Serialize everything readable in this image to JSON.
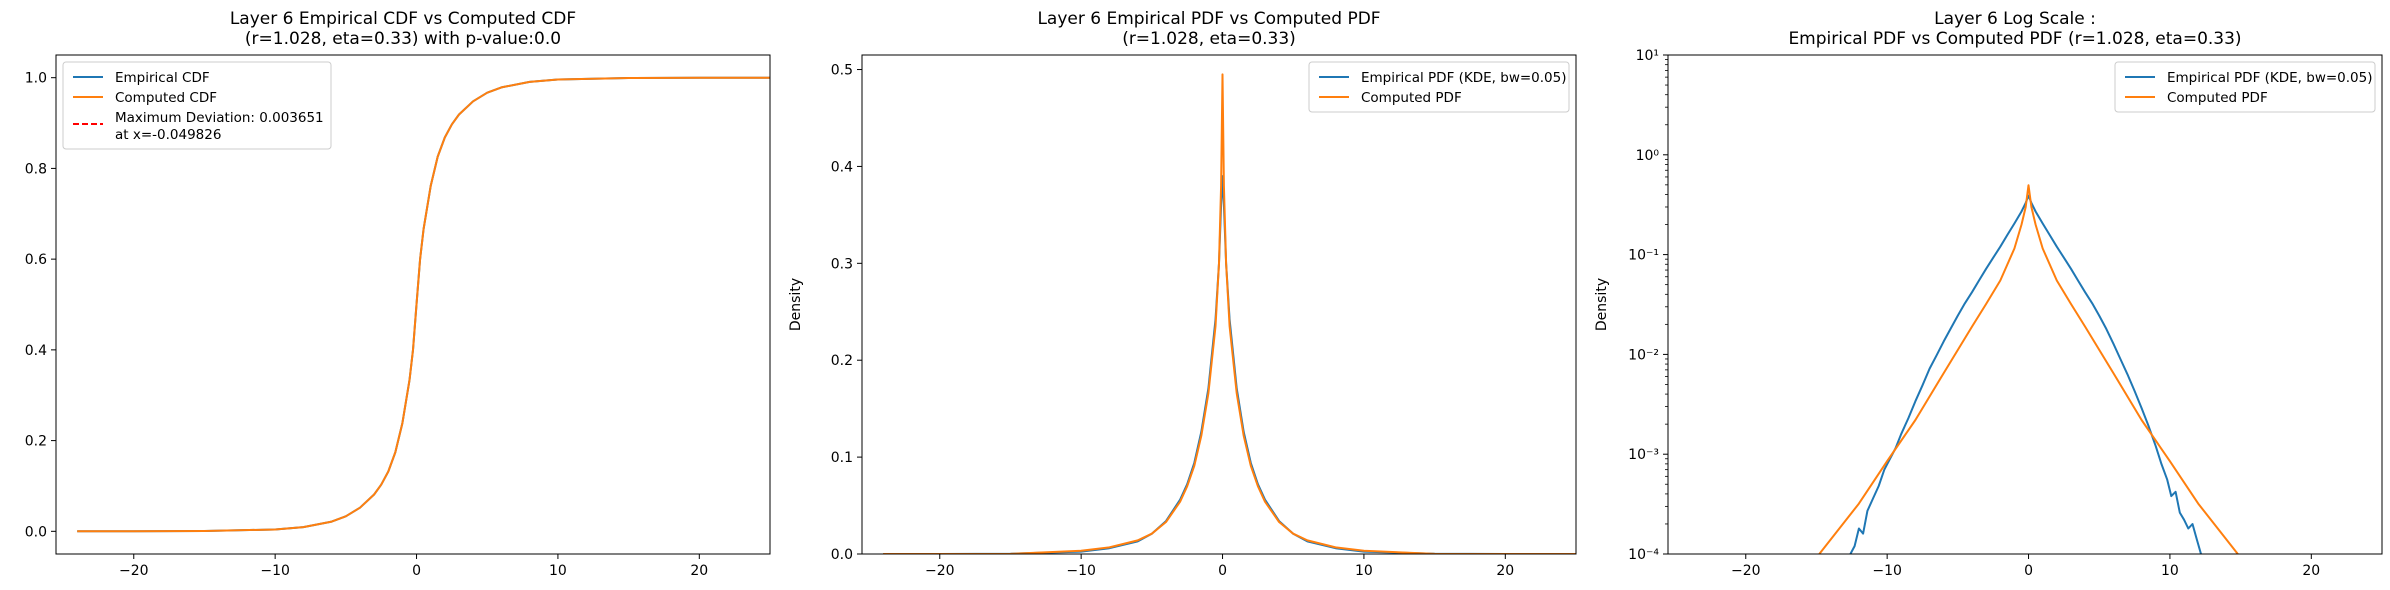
{
  "charts": [
    {
      "title_lines": [
        "Layer 6 Empirical CDF vs Computed CDF",
        "(r=1.028, eta=0.33) with p-value:0.0"
      ],
      "ylabel": "",
      "legend": [
        "Empirical CDF",
        "Computed CDF",
        "Maximum Deviation: 0.003651",
        "at x=-0.049826"
      ]
    },
    {
      "title_lines": [
        "Layer 6 Empirical PDF vs Computed PDF",
        "(r=1.028, eta=0.33)"
      ],
      "ylabel": "Density",
      "legend": [
        "Empirical PDF (KDE, bw=0.05)",
        "Computed PDF"
      ]
    },
    {
      "title_lines": [
        "Layer 6 Log Scale :",
        "Empirical PDF vs Computed PDF (r=1.028, eta=0.33)"
      ],
      "ylabel": "Density",
      "legend": [
        "Empirical PDF (KDE, bw=0.05)",
        "Computed PDF"
      ]
    }
  ],
  "chart_data": [
    {
      "type": "line",
      "xlim": [
        -25.5,
        25
      ],
      "ylim": [
        -0.05,
        1.05
      ],
      "xticks": [
        -20,
        -10,
        0,
        10,
        20
      ],
      "xtick_labels": [
        "−20",
        "−10",
        "0",
        "10",
        "20"
      ],
      "yticks": [
        0.0,
        0.2,
        0.4,
        0.6,
        0.8,
        1.0
      ],
      "ytick_labels": [
        "0.0",
        "0.2",
        "0.4",
        "0.6",
        "0.8",
        "1.0"
      ],
      "grid": false,
      "legend_position": "upper-left",
      "series": [
        {
          "name": "Empirical CDF",
          "color": "#1f77b4",
          "x": [
            -24,
            -20,
            -15,
            -10,
            -8,
            -6,
            -5,
            -4,
            -3,
            -2.5,
            -2,
            -1.5,
            -1,
            -0.5,
            -0.25,
            0,
            0.25,
            0.5,
            1,
            1.5,
            2,
            2.5,
            3,
            4,
            5,
            6,
            8,
            10,
            15,
            20,
            25
          ],
          "y": [
            0.0,
            0.0001,
            0.0006,
            0.0039,
            0.0093,
            0.0214,
            0.0332,
            0.0521,
            0.0812,
            0.1027,
            0.1318,
            0.1739,
            0.2385,
            0.3333,
            0.4,
            0.5,
            0.6,
            0.6667,
            0.7615,
            0.8261,
            0.8682,
            0.8973,
            0.9188,
            0.9479,
            0.9668,
            0.9786,
            0.9907,
            0.9961,
            0.9994,
            0.9999,
            1.0
          ]
        },
        {
          "name": "Computed CDF",
          "color": "#ff7f0e",
          "x": [
            -24,
            -20,
            -15,
            -10,
            -8,
            -6,
            -5,
            -4,
            -3,
            -2.5,
            -2,
            -1.5,
            -1,
            -0.5,
            -0.25,
            0,
            0.25,
            0.5,
            1,
            1.5,
            2,
            2.5,
            3,
            4,
            5,
            6,
            8,
            10,
            15,
            20,
            25
          ],
          "y": [
            0.0,
            0.0001,
            0.0006,
            0.0039,
            0.0093,
            0.0214,
            0.0332,
            0.0521,
            0.0812,
            0.1027,
            0.1318,
            0.1739,
            0.2385,
            0.3333,
            0.4,
            0.5,
            0.6,
            0.6667,
            0.7615,
            0.8261,
            0.8682,
            0.8973,
            0.9188,
            0.9479,
            0.9668,
            0.9786,
            0.9907,
            0.9961,
            0.9994,
            0.9999,
            1.0
          ]
        },
        {
          "name": "Maximum Deviation: 0.003651\nat x=-0.049826",
          "color": "#ff0000",
          "dashed": true,
          "x": [],
          "y": []
        }
      ]
    },
    {
      "type": "line",
      "xlim": [
        -25.5,
        25
      ],
      "ylim": [
        0,
        0.515
      ],
      "xticks": [
        -20,
        -10,
        0,
        10,
        20
      ],
      "xtick_labels": [
        "−20",
        "−10",
        "0",
        "10",
        "20"
      ],
      "yticks": [
        0.0,
        0.1,
        0.2,
        0.3,
        0.4,
        0.5
      ],
      "ytick_labels": [
        "0.0",
        "0.1",
        "0.2",
        "0.3",
        "0.4",
        "0.5"
      ],
      "grid": false,
      "legend_position": "upper-right",
      "series": [
        {
          "name": "Empirical PDF (KDE, bw=0.05)",
          "color": "#1f77b4",
          "x": [
            -24,
            -20,
            -15,
            -10,
            -8,
            -6,
            -5,
            -4,
            -3,
            -2.5,
            -2,
            -1.5,
            -1,
            -0.5,
            -0.25,
            -0.1,
            0,
            0.1,
            0.25,
            0.5,
            1,
            1.5,
            2,
            2.5,
            3,
            4,
            5,
            6,
            8,
            10,
            15,
            20,
            25
          ],
          "y": [
            0.0,
            0.0,
            0.0003,
            0.0025,
            0.006,
            0.013,
            0.021,
            0.034,
            0.056,
            0.072,
            0.094,
            0.126,
            0.171,
            0.242,
            0.3,
            0.36,
            0.39,
            0.36,
            0.3,
            0.242,
            0.171,
            0.126,
            0.094,
            0.072,
            0.056,
            0.034,
            0.021,
            0.013,
            0.006,
            0.0025,
            0.0003,
            0.0,
            0.0
          ]
        },
        {
          "name": "Computed PDF",
          "color": "#ff7f0e",
          "x": [
            -24,
            -20,
            -15,
            -10,
            -8,
            -6,
            -5,
            -4,
            -3,
            -2.5,
            -2,
            -1.5,
            -1,
            -0.5,
            -0.25,
            -0.1,
            0,
            0.1,
            0.25,
            0.5,
            1,
            1.5,
            2,
            2.5,
            3,
            4,
            5,
            6,
            8,
            10,
            15,
            20,
            25
          ],
          "y": [
            1e-05,
            3e-05,
            0.0001,
            0.0033,
            0.0068,
            0.014,
            0.021,
            0.033,
            0.054,
            0.07,
            0.091,
            0.122,
            0.166,
            0.235,
            0.3,
            0.38,
            0.495,
            0.38,
            0.3,
            0.235,
            0.166,
            0.122,
            0.091,
            0.07,
            0.054,
            0.033,
            0.021,
            0.014,
            0.0068,
            0.0033,
            0.0001,
            3e-05,
            1e-05
          ]
        }
      ]
    },
    {
      "type": "line",
      "yscale": "log",
      "xlim": [
        -25.5,
        25
      ],
      "ylim": [
        0.0001,
        10
      ],
      "xticks": [
        -20,
        -10,
        0,
        10,
        20
      ],
      "xtick_labels": [
        "−20",
        "−10",
        "0",
        "10",
        "20"
      ],
      "yticks": [
        0.0001,
        0.001,
        0.01,
        0.1,
        1,
        10
      ],
      "ytick_labels": [
        "10⁻⁴",
        "10⁻³",
        "10⁻²",
        "10⁻¹",
        "10⁰",
        "10¹"
      ],
      "grid": false,
      "legend_position": "upper-right",
      "series": [
        {
          "name": "Empirical PDF (KDE, bw=0.05)",
          "color": "#1f77b4",
          "x": [
            -12.6,
            -12.3,
            -12.0,
            -11.7,
            -11.4,
            -11.0,
            -10.6,
            -10.2,
            -9.8,
            -9.4,
            -9.0,
            -8.5,
            -8.0,
            -7.5,
            -7.0,
            -6.5,
            -6.0,
            -5.5,
            -5.0,
            -4.5,
            -4.0,
            -3.5,
            -3.0,
            -2.5,
            -2.0,
            -1.5,
            -1.0,
            -0.5,
            -0.2,
            0,
            0.2,
            0.5,
            1.0,
            1.5,
            2.0,
            2.5,
            3.0,
            3.5,
            4.0,
            4.5,
            5.0,
            5.5,
            6.0,
            6.5,
            7.0,
            7.5,
            8.0,
            8.5,
            9.0,
            9.4,
            9.8,
            10.1,
            10.4,
            10.7,
            11.0,
            11.3,
            11.6,
            11.9,
            12.2
          ],
          "y": [
            0.0001,
            0.00012,
            0.00018,
            0.00016,
            0.00027,
            0.00036,
            0.00048,
            0.0007,
            0.0009,
            0.00115,
            0.0016,
            0.0023,
            0.0034,
            0.0049,
            0.0072,
            0.0098,
            0.0135,
            0.0182,
            0.0245,
            0.0325,
            0.042,
            0.055,
            0.072,
            0.093,
            0.12,
            0.157,
            0.205,
            0.27,
            0.33,
            0.39,
            0.33,
            0.27,
            0.205,
            0.157,
            0.12,
            0.093,
            0.072,
            0.055,
            0.042,
            0.0325,
            0.0245,
            0.018,
            0.0128,
            0.009,
            0.0063,
            0.0043,
            0.0029,
            0.0019,
            0.0012,
            0.0008,
            0.00056,
            0.00038,
            0.00042,
            0.00026,
            0.00022,
            0.00018,
            0.0002,
            0.00014,
            0.0001
          ]
        },
        {
          "name": "Computed PDF",
          "color": "#ff7f0e",
          "x": [
            -14.8,
            -12,
            -10,
            -8,
            -6,
            -4,
            -3,
            -2,
            -1,
            -0.5,
            -0.2,
            0,
            0.2,
            0.5,
            1,
            2,
            3,
            4,
            6,
            8,
            10,
            12,
            14.8
          ],
          "y": [
            0.0001,
            0.00032,
            0.00085,
            0.0022,
            0.0065,
            0.019,
            0.032,
            0.055,
            0.115,
            0.2,
            0.3,
            0.495,
            0.3,
            0.2,
            0.115,
            0.055,
            0.032,
            0.019,
            0.0065,
            0.0022,
            0.00085,
            0.00032,
            0.0001
          ]
        }
      ]
    }
  ]
}
